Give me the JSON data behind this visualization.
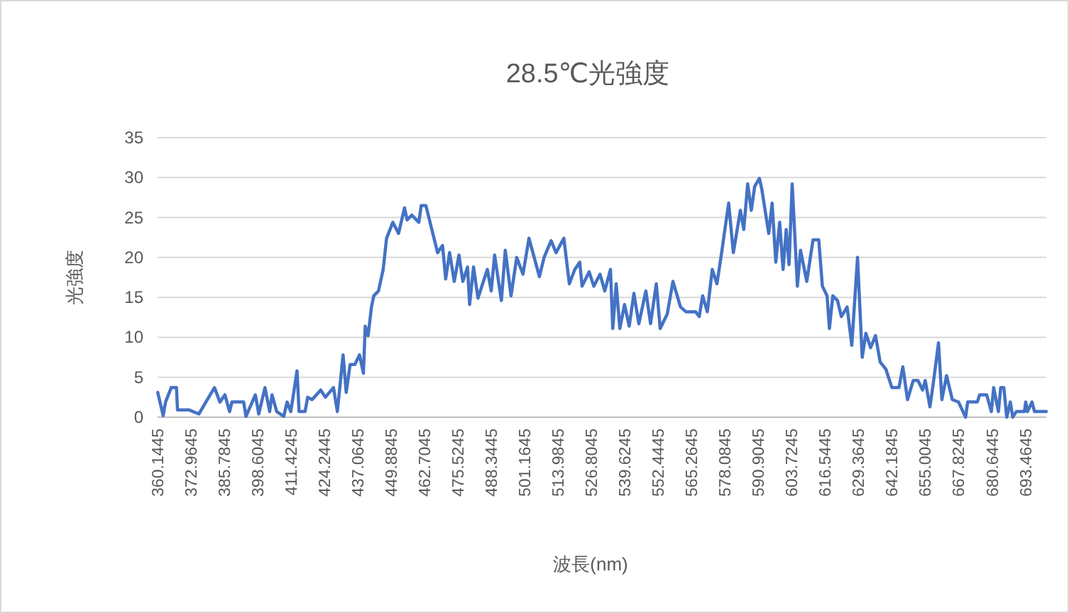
{
  "chart_data": {
    "type": "line",
    "title": "28.5℃光強度",
    "xlabel": "波長(nm)",
    "ylabel": "光強度",
    "color": "#4472c4",
    "grid": "y",
    "xlim": [
      360.1445,
      701.5
    ],
    "ylim": [
      0,
      35
    ],
    "yticks": [
      0,
      5,
      10,
      15,
      20,
      25,
      30,
      35
    ],
    "xticks": [
      360.1445,
      372.9645,
      385.7845,
      398.6045,
      411.4245,
      424.2445,
      437.0645,
      449.8845,
      462.7045,
      475.5245,
      488.3445,
      501.1645,
      513.9845,
      526.8045,
      539.6245,
      552.4445,
      565.2645,
      578.0845,
      590.9045,
      603.7245,
      616.5445,
      629.3645,
      642.1845,
      655.0045,
      667.8245,
      680.6445,
      693.4645
    ],
    "x": [
      360.2,
      362.3,
      363.2,
      365.4,
      367.4,
      367.8,
      372.3,
      376,
      378.7,
      382,
      384.1,
      386,
      387.8,
      388.7,
      393.2,
      394.1,
      397.7,
      399,
      401.4,
      403.2,
      404.1,
      405.9,
      408.6,
      409.9,
      411.3,
      412.3,
      413.7,
      414.5,
      416.8,
      417.8,
      419.5,
      422.8,
      424.6,
      427.7,
      429.2,
      431.4,
      432.6,
      434.1,
      435.9,
      437.7,
      439.2,
      439.9,
      441,
      442.3,
      443.2,
      445,
      446.8,
      448.1,
      450.5,
      452.7,
      455,
      456,
      457.8,
      460.5,
      461.4,
      463.2,
      467.7,
      469.6,
      470.8,
      472.3,
      474.1,
      475.9,
      477.4,
      479.2,
      480,
      481.5,
      483.2,
      486.8,
      488.3,
      489.6,
      492.2,
      493.7,
      495.9,
      498.1,
      500.5,
      502.8,
      506.8,
      508.6,
      511.3,
      513.2,
      516.2,
      518.3,
      520.4,
      522.3,
      523.2,
      525.9,
      527.7,
      530.1,
      531.9,
      534.1,
      535,
      536.3,
      537.7,
      539.5,
      541.3,
      543.1,
      545,
      547.7,
      549.5,
      551.7,
      553.2,
      555.9,
      558.1,
      561,
      563.1,
      566.8,
      568.2,
      569.5,
      571.3,
      573.2,
      575,
      576.8,
      577.7,
      579.5,
      581.3,
      584,
      585.3,
      586.8,
      588.2,
      589.5,
      591.3,
      592.2,
      594.9,
      596.2,
      597.6,
      599.1,
      600.4,
      601.6,
      602.7,
      603.9,
      605.9,
      607.1,
      609.5,
      611.9,
      614.1,
      615.5,
      617.3,
      618.2,
      619.5,
      621.3,
      622.8,
      625,
      626.8,
      629,
      630.8,
      632.2,
      634,
      635.9,
      637.7,
      639.9,
      642.2,
      644.9,
      646.4,
      648.2,
      650.4,
      652.2,
      654,
      655,
      656.8,
      658,
      660.1,
      661.4,
      663.2,
      665.4,
      667.8,
      670.5,
      671.3,
      675,
      675.9,
      678.6,
      680.4,
      681.3,
      683.1,
      684,
      685.2,
      686.3,
      687.7,
      688.6,
      690,
      693.1,
      693.6,
      694.3,
      696,
      697,
      701.5
    ],
    "values": [
      3.1,
      0.2,
      1.9,
      3.7,
      3.7,
      0.9,
      0.9,
      0.4,
      1.9,
      3.7,
      1.9,
      2.8,
      0.7,
      1.9,
      1.9,
      0.1,
      2.8,
      0.4,
      3.7,
      0.7,
      2.8,
      0.7,
      0.1,
      1.9,
      0.7,
      2.8,
      5.8,
      0.7,
      0.7,
      2.5,
      2.2,
      3.4,
      2.5,
      3.7,
      0.7,
      7.8,
      3.1,
      6.6,
      6.6,
      7.8,
      5.5,
      11.4,
      10.2,
      13.8,
      15.2,
      15.8,
      18.5,
      22.4,
      24.4,
      23,
      26.2,
      24.7,
      25.3,
      24.4,
      26.5,
      26.5,
      20.6,
      21.5,
      17.3,
      20.6,
      17,
      20.3,
      17,
      18.8,
      14.1,
      18.8,
      14.9,
      18.5,
      15.8,
      20.3,
      14.6,
      20.9,
      15.2,
      20,
      17.9,
      22.4,
      17.6,
      20,
      22.1,
      20.6,
      22.4,
      16.7,
      18.5,
      19.4,
      16.4,
      18.2,
      16.4,
      17.9,
      15.8,
      18.5,
      11.1,
      16.7,
      11.1,
      14.1,
      11.4,
      15.5,
      11.7,
      15.8,
      11.7,
      16.7,
      11.1,
      12.9,
      17,
      13.8,
      13.2,
      13.2,
      12.6,
      15.2,
      13.2,
      18.5,
      16.7,
      20.6,
      22.7,
      26.8,
      20.6,
      25.9,
      23.5,
      29.2,
      25.9,
      28.9,
      29.9,
      28.6,
      23,
      26.8,
      19.4,
      24.4,
      18.5,
      23.5,
      19.1,
      29.2,
      16.4,
      20.9,
      17,
      22.2,
      22.2,
      16.4,
      15.2,
      11.1,
      15.2,
      14.6,
      12.6,
      13.8,
      9,
      20,
      7.5,
      10.5,
      8.7,
      10.2,
      6.9,
      6,
      3.7,
      3.7,
      6.3,
      2.2,
      4.6,
      4.6,
      3.4,
      4.6,
      1.3,
      4,
      9.3,
      2.2,
      5.2,
      2.2,
      1.9,
      0,
      1.9,
      1.9,
      2.8,
      2.8,
      0.7,
      3.7,
      0.7,
      3.7,
      3.7,
      0,
      1.9,
      0,
      0.7,
      0.7,
      1.9,
      0.7,
      1.9,
      0.7,
      0.7
    ]
  }
}
